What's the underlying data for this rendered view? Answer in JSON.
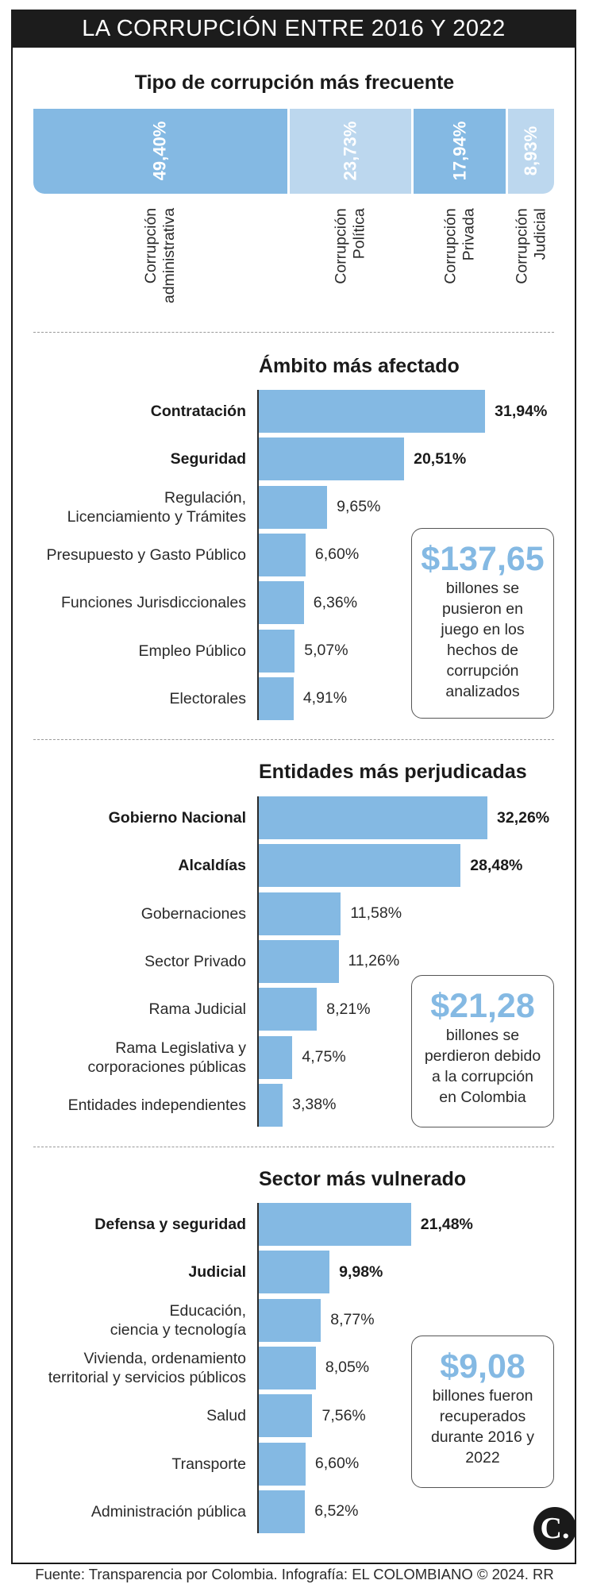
{
  "header": {
    "title": "LA CORRUPCIÓN ENTRE 2016 Y 2022"
  },
  "chart_data": [
    {
      "type": "bar",
      "orientation": "stacked-horizontal",
      "title": "Tipo de corrupción más frecuente",
      "categories": [
        "Corrupción administrativa",
        "Corrupción Política",
        "Corrupción Privada",
        "Corrupción Judicial"
      ],
      "label_lines": [
        [
          "Corrupción",
          "administrativa"
        ],
        [
          "Corrupción",
          "Política"
        ],
        [
          "Corrupción",
          "Privada"
        ],
        [
          "Corrupción",
          "Judicial"
        ]
      ],
      "values": [
        49.4,
        23.73,
        17.94,
        8.93
      ],
      "value_labels": [
        "49,40%",
        "23,73%",
        "17,94%",
        "8,93%"
      ],
      "colors": [
        "#84b9e3",
        "#bcd7ee",
        "#84b9e3",
        "#bcd7ee"
      ],
      "label_colors": [
        "#ffffff",
        "#ffffff",
        "#ffffff",
        "#ffffff"
      ]
    },
    {
      "type": "bar",
      "orientation": "horizontal",
      "title": "Ámbito más afectado",
      "categories": [
        "Contratación",
        "Seguridad",
        "Regulación, Licenciamiento y Trámites",
        "Presupuesto y Gasto Público",
        "Funciones Jurisdiccionales",
        "Empleo Público",
        "Electorales"
      ],
      "label_lines": [
        [
          "Contratación"
        ],
        [
          "Seguridad"
        ],
        [
          "Regulación,",
          "Licenciamiento y Trámites"
        ],
        [
          "Presupuesto y Gasto Público"
        ],
        [
          "Funciones Jurisdiccionales"
        ],
        [
          "Empleo Público"
        ],
        [
          "Electorales"
        ]
      ],
      "values": [
        31.94,
        20.51,
        9.65,
        6.6,
        6.36,
        5.07,
        4.91
      ],
      "value_labels": [
        "31,94%",
        "20,51%",
        "9,65%",
        "6,60%",
        "6,36%",
        "5,07%",
        "4,91%"
      ],
      "bold": [
        true,
        true,
        false,
        false,
        false,
        false,
        false
      ],
      "callout": {
        "amount": "$137,65",
        "text": [
          "billones se",
          "pusieron en",
          "juego en los",
          "hechos de",
          "corrupción",
          "analizados"
        ]
      }
    },
    {
      "type": "bar",
      "orientation": "horizontal",
      "title": "Entidades más perjudicadas",
      "categories": [
        "Gobierno Nacional",
        "Alcaldías",
        "Gobernaciones",
        "Sector Privado",
        "Rama Judicial",
        "Rama Legislativa y corporaciones públicas",
        "Entidades independientes"
      ],
      "label_lines": [
        [
          "Gobierno Nacional"
        ],
        [
          "Alcaldías"
        ],
        [
          "Gobernaciones"
        ],
        [
          "Sector Privado"
        ],
        [
          "Rama Judicial"
        ],
        [
          "Rama Legislativa y",
          "corporaciones públicas"
        ],
        [
          "Entidades independientes"
        ]
      ],
      "values": [
        32.26,
        28.48,
        11.58,
        11.26,
        8.21,
        4.75,
        3.38
      ],
      "value_labels": [
        "32,26%",
        "28,48%",
        "11,58%",
        "11,26%",
        "8,21%",
        "4,75%",
        "3,38%"
      ],
      "bold": [
        true,
        true,
        false,
        false,
        false,
        false,
        false
      ],
      "callout": {
        "amount": "$21,28",
        "text": [
          "billones se",
          "perdieron debido",
          "a la corrupción",
          "en Colombia"
        ]
      }
    },
    {
      "type": "bar",
      "orientation": "horizontal",
      "title": "Sector más vulnerado",
      "categories": [
        "Defensa y seguridad",
        "Judicial",
        "Educación, ciencia y tecnología",
        "Vivienda, ordenamiento territorial y servicios públicos",
        "Salud",
        "Transporte",
        "Administración pública"
      ],
      "label_lines": [
        [
          "Defensa y seguridad"
        ],
        [
          "Judicial"
        ],
        [
          "Educación,",
          "ciencia y tecnología"
        ],
        [
          "Vivienda, ordenamiento",
          "territorial y servicios públicos"
        ],
        [
          "Salud"
        ],
        [
          "Transporte"
        ],
        [
          "Administración pública"
        ]
      ],
      "values": [
        21.48,
        9.98,
        8.77,
        8.05,
        7.56,
        6.6,
        6.52
      ],
      "value_labels": [
        "21,48%",
        "9,98%",
        "8,77%",
        "8,05%",
        "7,56%",
        "6,60%",
        "6,52%"
      ],
      "bold": [
        true,
        true,
        false,
        false,
        false,
        false,
        false
      ],
      "callout": {
        "amount": "$9,08",
        "text": [
          "billones fueron",
          "recuperados",
          "durante 2016 y",
          "2022"
        ]
      }
    }
  ],
  "footer": {
    "source": "Fuente: Transparencia por Colombia. Infografía: EL COLOMBIANO © 2024. RR",
    "logo": "C."
  },
  "colors": {
    "bar": "#84b9e3",
    "bar_light": "#bcd7ee",
    "title_bg": "#1c1c1c"
  }
}
